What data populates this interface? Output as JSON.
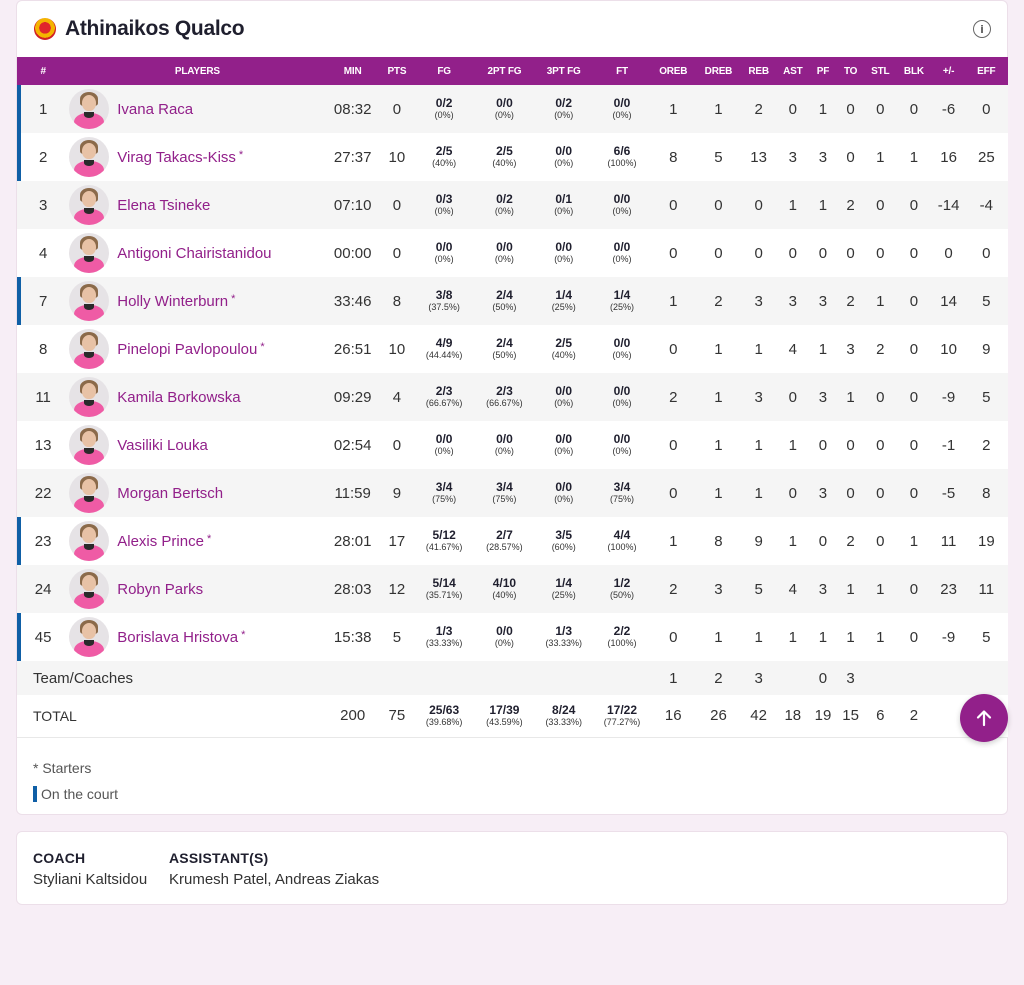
{
  "team": {
    "name": "Athinaikos Qualco"
  },
  "columns": [
    "#",
    "PLAYERS",
    "MIN",
    "PTS",
    "FG",
    "2PT FG",
    "3PT FG",
    "FT",
    "OREB",
    "DREB",
    "REB",
    "AST",
    "PF",
    "TO",
    "STL",
    "BLK",
    "+/-",
    "EFF"
  ],
  "players": [
    {
      "num": "1",
      "name": "Ivana Raca",
      "starter": false,
      "on_court": true,
      "min": "08:32",
      "pts": "0",
      "fg": "0/2",
      "fg_pct": "(0%)",
      "fg2": "0/0",
      "fg2_pct": "(0%)",
      "fg3": "0/2",
      "fg3_pct": "(0%)",
      "ft": "0/0",
      "ft_pct": "(0%)",
      "oreb": "1",
      "dreb": "1",
      "reb": "2",
      "ast": "0",
      "pf": "1",
      "to": "0",
      "stl": "0",
      "blk": "0",
      "pm": "-6",
      "eff": "0"
    },
    {
      "num": "2",
      "name": "Virag Takacs-Kiss",
      "starter": true,
      "on_court": true,
      "min": "27:37",
      "pts": "10",
      "fg": "2/5",
      "fg_pct": "(40%)",
      "fg2": "2/5",
      "fg2_pct": "(40%)",
      "fg3": "0/0",
      "fg3_pct": "(0%)",
      "ft": "6/6",
      "ft_pct": "(100%)",
      "oreb": "8",
      "dreb": "5",
      "reb": "13",
      "ast": "3",
      "pf": "3",
      "to": "0",
      "stl": "1",
      "blk": "1",
      "pm": "16",
      "eff": "25"
    },
    {
      "num": "3",
      "name": "Elena Tsineke",
      "starter": false,
      "on_court": false,
      "min": "07:10",
      "pts": "0",
      "fg": "0/3",
      "fg_pct": "(0%)",
      "fg2": "0/2",
      "fg2_pct": "(0%)",
      "fg3": "0/1",
      "fg3_pct": "(0%)",
      "ft": "0/0",
      "ft_pct": "(0%)",
      "oreb": "0",
      "dreb": "0",
      "reb": "0",
      "ast": "1",
      "pf": "1",
      "to": "2",
      "stl": "0",
      "blk": "0",
      "pm": "-14",
      "eff": "-4"
    },
    {
      "num": "4",
      "name": "Antigoni Chairistanidou",
      "starter": false,
      "on_court": false,
      "min": "00:00",
      "pts": "0",
      "fg": "0/0",
      "fg_pct": "(0%)",
      "fg2": "0/0",
      "fg2_pct": "(0%)",
      "fg3": "0/0",
      "fg3_pct": "(0%)",
      "ft": "0/0",
      "ft_pct": "(0%)",
      "oreb": "0",
      "dreb": "0",
      "reb": "0",
      "ast": "0",
      "pf": "0",
      "to": "0",
      "stl": "0",
      "blk": "0",
      "pm": "0",
      "eff": "0"
    },
    {
      "num": "7",
      "name": "Holly Winterburn",
      "starter": true,
      "on_court": true,
      "min": "33:46",
      "pts": "8",
      "fg": "3/8",
      "fg_pct": "(37.5%)",
      "fg2": "2/4",
      "fg2_pct": "(50%)",
      "fg3": "1/4",
      "fg3_pct": "(25%)",
      "ft": "1/4",
      "ft_pct": "(25%)",
      "oreb": "1",
      "dreb": "2",
      "reb": "3",
      "ast": "3",
      "pf": "3",
      "to": "2",
      "stl": "1",
      "blk": "0",
      "pm": "14",
      "eff": "5"
    },
    {
      "num": "8",
      "name": "Pinelopi Pavlopoulou",
      "starter": true,
      "on_court": false,
      "min": "26:51",
      "pts": "10",
      "fg": "4/9",
      "fg_pct": "(44.44%)",
      "fg2": "2/4",
      "fg2_pct": "(50%)",
      "fg3": "2/5",
      "fg3_pct": "(40%)",
      "ft": "0/0",
      "ft_pct": "(0%)",
      "oreb": "0",
      "dreb": "1",
      "reb": "1",
      "ast": "4",
      "pf": "1",
      "to": "3",
      "stl": "2",
      "blk": "0",
      "pm": "10",
      "eff": "9"
    },
    {
      "num": "11",
      "name": "Kamila Borkowska",
      "starter": false,
      "on_court": false,
      "min": "09:29",
      "pts": "4",
      "fg": "2/3",
      "fg_pct": "(66.67%)",
      "fg2": "2/3",
      "fg2_pct": "(66.67%)",
      "fg3": "0/0",
      "fg3_pct": "(0%)",
      "ft": "0/0",
      "ft_pct": "(0%)",
      "oreb": "2",
      "dreb": "1",
      "reb": "3",
      "ast": "0",
      "pf": "3",
      "to": "1",
      "stl": "0",
      "blk": "0",
      "pm": "-9",
      "eff": "5"
    },
    {
      "num": "13",
      "name": "Vasiliki Louka",
      "starter": false,
      "on_court": false,
      "min": "02:54",
      "pts": "0",
      "fg": "0/0",
      "fg_pct": "(0%)",
      "fg2": "0/0",
      "fg2_pct": "(0%)",
      "fg3": "0/0",
      "fg3_pct": "(0%)",
      "ft": "0/0",
      "ft_pct": "(0%)",
      "oreb": "0",
      "dreb": "1",
      "reb": "1",
      "ast": "1",
      "pf": "0",
      "to": "0",
      "stl": "0",
      "blk": "0",
      "pm": "-1",
      "eff": "2"
    },
    {
      "num": "22",
      "name": "Morgan Bertsch",
      "starter": false,
      "on_court": false,
      "min": "11:59",
      "pts": "9",
      "fg": "3/4",
      "fg_pct": "(75%)",
      "fg2": "3/4",
      "fg2_pct": "(75%)",
      "fg3": "0/0",
      "fg3_pct": "(0%)",
      "ft": "3/4",
      "ft_pct": "(75%)",
      "oreb": "0",
      "dreb": "1",
      "reb": "1",
      "ast": "0",
      "pf": "3",
      "to": "0",
      "stl": "0",
      "blk": "0",
      "pm": "-5",
      "eff": "8"
    },
    {
      "num": "23",
      "name": "Alexis Prince",
      "starter": true,
      "on_court": true,
      "min": "28:01",
      "pts": "17",
      "fg": "5/12",
      "fg_pct": "(41.67%)",
      "fg2": "2/7",
      "fg2_pct": "(28.57%)",
      "fg3": "3/5",
      "fg3_pct": "(60%)",
      "ft": "4/4",
      "ft_pct": "(100%)",
      "oreb": "1",
      "dreb": "8",
      "reb": "9",
      "ast": "1",
      "pf": "0",
      "to": "2",
      "stl": "0",
      "blk": "1",
      "pm": "11",
      "eff": "19"
    },
    {
      "num": "24",
      "name": "Robyn Parks",
      "starter": false,
      "on_court": false,
      "min": "28:03",
      "pts": "12",
      "fg": "5/14",
      "fg_pct": "(35.71%)",
      "fg2": "4/10",
      "fg2_pct": "(40%)",
      "fg3": "1/4",
      "fg3_pct": "(25%)",
      "ft": "1/2",
      "ft_pct": "(50%)",
      "oreb": "2",
      "dreb": "3",
      "reb": "5",
      "ast": "4",
      "pf": "3",
      "to": "1",
      "stl": "1",
      "blk": "0",
      "pm": "23",
      "eff": "11"
    },
    {
      "num": "45",
      "name": "Borislava Hristova",
      "starter": true,
      "on_court": true,
      "min": "15:38",
      "pts": "5",
      "fg": "1/3",
      "fg_pct": "(33.33%)",
      "fg2": "0/0",
      "fg2_pct": "(0%)",
      "fg3": "1/3",
      "fg3_pct": "(33.33%)",
      "ft": "2/2",
      "ft_pct": "(100%)",
      "oreb": "0",
      "dreb": "1",
      "reb": "1",
      "ast": "1",
      "pf": "1",
      "to": "1",
      "stl": "1",
      "blk": "0",
      "pm": "-9",
      "eff": "5"
    }
  ],
  "team_coaches": {
    "label": "Team/Coaches",
    "oreb": "1",
    "dreb": "2",
    "reb": "3",
    "ast": "",
    "pf": "0",
    "to": "3",
    "stl": "",
    "blk": "",
    "pm": "",
    "eff": ""
  },
  "total": {
    "label": "TOTAL",
    "min": "200",
    "pts": "75",
    "fg": "25/63",
    "fg_pct": "(39.68%)",
    "fg2": "17/39",
    "fg2_pct": "(43.59%)",
    "fg3": "8/24",
    "fg3_pct": "(33.33%)",
    "ft": "17/22",
    "ft_pct": "(77.27%)",
    "oreb": "16",
    "dreb": "26",
    "reb": "42",
    "ast": "18",
    "pf": "19",
    "to": "15",
    "stl": "6",
    "blk": "2"
  },
  "legend": {
    "starters": "* Starters",
    "on_court": "On the court"
  },
  "coach": {
    "label": "COACH",
    "name": "Styliani Kaltsidou"
  },
  "assistants": {
    "label": "ASSISTANT(S)",
    "names": "Krumesh Patel, Andreas Ziakas"
  },
  "colors": {
    "primary": "#92208a",
    "on_court": "#0f5fa6",
    "background": "#f7eef6"
  },
  "icons": {
    "info": "info-icon",
    "scroll_top": "arrow-up-icon",
    "team_logo": "team-logo-icon"
  }
}
